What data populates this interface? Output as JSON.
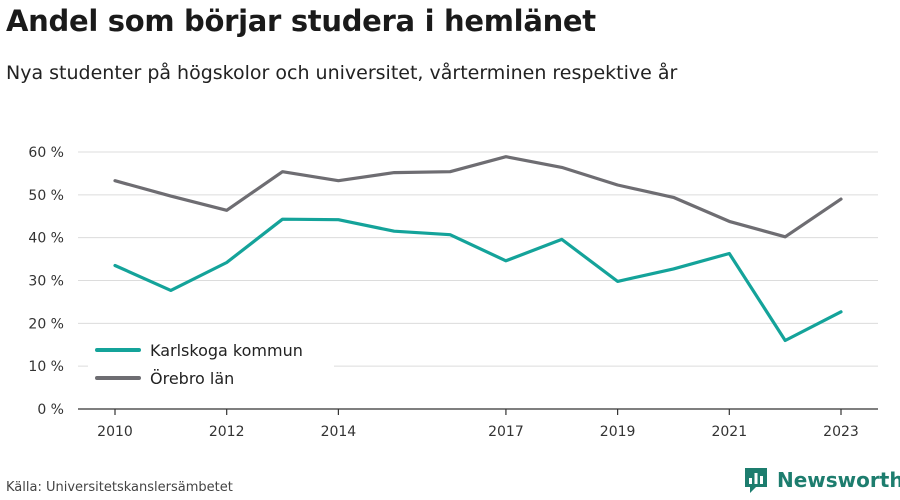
{
  "chart_data": {
    "type": "line",
    "title": "Andel som börjar studera i hemlänet",
    "subtitle": "Nya studenter på högskolor och universitet, vårterminen respektive år",
    "x": [
      2010,
      2011,
      2012,
      2013,
      2014,
      2015,
      2016,
      2017,
      2018,
      2019,
      2020,
      2021,
      2022,
      2023
    ],
    "x_tick_labels": [
      "2010",
      "2012",
      "2014",
      "2017",
      "2019",
      "2021",
      "2023"
    ],
    "x_tick_values": [
      2010,
      2012,
      2014,
      2017,
      2019,
      2021,
      2023
    ],
    "y_tick_values": [
      0,
      10,
      20,
      30,
      40,
      50,
      60
    ],
    "y_tick_labels": [
      "0 %",
      "10 %",
      "20 %",
      "30 %",
      "40 %",
      "50 %",
      "60 %"
    ],
    "ylim": [
      0,
      60
    ],
    "grid": true,
    "legend_placement": "bottom-left",
    "series": [
      {
        "name": "Karlskoga kommun",
        "color": "#14a39a",
        "values": [
          33.5,
          27.7,
          34.2,
          44.3,
          44.2,
          41.5,
          40.7,
          34.6,
          39.6,
          29.8,
          32.7,
          36.3,
          16.0,
          22.7
        ]
      },
      {
        "name": "Örebro län",
        "color": "#6e6d72",
        "values": [
          53.3,
          49.7,
          46.4,
          55.4,
          53.3,
          55.2,
          55.4,
          58.9,
          56.4,
          52.3,
          49.4,
          43.8,
          40.2,
          49.0
        ]
      }
    ]
  },
  "source": "Källa: Universitetskanslersämbetet",
  "brand": {
    "name": "Newsworthy",
    "color": "#1d7d6e",
    "icon": "newsworthy-logo-icon"
  }
}
